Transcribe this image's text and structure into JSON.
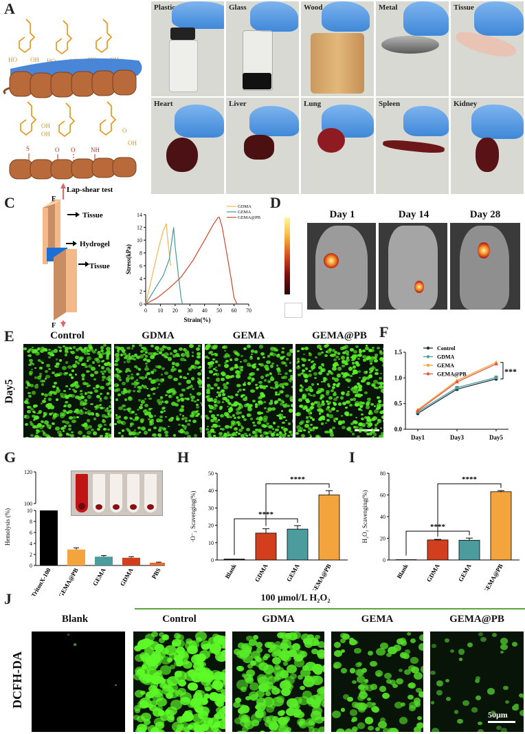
{
  "panels": {
    "A": "A",
    "B": "B",
    "C": "C",
    "D": "D",
    "E": "E",
    "F": "F",
    "G": "G",
    "H": "H",
    "I": "I",
    "J": "J"
  },
  "panelB": {
    "row1": [
      "Plastics",
      "Glass",
      "Wood",
      "Metal",
      "Tissue"
    ],
    "row2": [
      "Heart",
      "Liver",
      "Lung",
      "Spleen",
      "Kidney"
    ]
  },
  "panelC": {
    "title": "Lap-shear test",
    "labels": {
      "tissue_top": "Tissue",
      "hydrogel": "Hydrogel",
      "tissue_bottom": "Tissue",
      "force_top": "F",
      "force_bottom": "F"
    }
  },
  "panelD": {
    "days": [
      "Day 1",
      "Day 14",
      "Day 28"
    ]
  },
  "panelE": {
    "columns": [
      "Control",
      "GDMA",
      "GEMA",
      "GEMA@PB"
    ],
    "row_label": "Day5"
  },
  "panelJ": {
    "condition": "100 μmol/L H₂O₂",
    "row_label": "DCFH-DA",
    "columns": [
      "Blank",
      "Control",
      "GDMA",
      "GEMA",
      "GEMA@PB"
    ],
    "scale_bar": "50μm"
  },
  "colors": {
    "gdma": "#f3b54e",
    "gema": "#3f9a9c",
    "gemapb": "#d2452a",
    "orange": "#f3a43c",
    "teal": "#4c9c9d",
    "red": "#d23f1f",
    "black": "#000000",
    "pbs": "#ea6b2b"
  },
  "chart_data": [
    {
      "id": "C",
      "type": "line",
      "title": "",
      "xlabel": "Strain(%)",
      "ylabel": "Stress(kPa)",
      "xlim": [
        0,
        70
      ],
      "ylim": [
        0,
        14
      ],
      "xticks": [
        0,
        10,
        20,
        30,
        40,
        50,
        60,
        70
      ],
      "yticks": [
        0,
        2,
        4,
        6,
        8,
        10,
        12,
        14
      ],
      "series": [
        {
          "name": "GDMA",
          "x": [
            0,
            3,
            6,
            9,
            12,
            14,
            15,
            17
          ],
          "y": [
            0,
            3,
            6,
            9,
            11.5,
            12.6,
            10,
            6
          ]
        },
        {
          "name": "GEMA",
          "x": [
            0,
            4,
            8,
            12,
            16,
            19,
            20,
            22,
            24,
            25
          ],
          "y": [
            0,
            1.5,
            3,
            4.5,
            7,
            12,
            9,
            5,
            1,
            0
          ]
        },
        {
          "name": "GEMA@PB",
          "x": [
            0,
            8,
            16,
            24,
            32,
            40,
            46,
            49,
            50,
            52,
            55,
            58,
            60,
            62
          ],
          "y": [
            0,
            1,
            2.5,
            4.2,
            6.8,
            10,
            12.5,
            13.5,
            13.6,
            12,
            8,
            4,
            1,
            0
          ]
        }
      ]
    },
    {
      "id": "F",
      "type": "line",
      "title": "",
      "xlabel": "",
      "ylabel": "",
      "categories": [
        "Day1",
        "Day3",
        "Day5"
      ],
      "ylim": [
        0,
        1.5
      ],
      "yticks": [
        0.0,
        0.5,
        1.0,
        1.5
      ],
      "annotation": "***",
      "series": [
        {
          "name": "Control",
          "values": [
            0.31,
            0.78,
            0.98
          ]
        },
        {
          "name": "GDMA",
          "values": [
            0.34,
            0.81,
            1.01
          ]
        },
        {
          "name": "GEMA",
          "values": [
            0.38,
            0.95,
            1.3
          ]
        },
        {
          "name": "GEMA@PB",
          "values": [
            0.36,
            0.92,
            1.27
          ]
        }
      ]
    },
    {
      "id": "G",
      "type": "bar",
      "title": "",
      "ylabel": "Hemolysis (%)",
      "categories": [
        "TritonX-100",
        "GEMA@PB",
        "GEMA",
        "GDMA",
        "PBS"
      ],
      "values": [
        100,
        2.9,
        1.6,
        1.4,
        0.5
      ],
      "errors": [
        0,
        0.3,
        0.2,
        0.2,
        0.1
      ],
      "yticks_low": [
        0,
        2,
        4,
        6,
        8,
        10
      ],
      "yticks_high": [
        100,
        120
      ]
    },
    {
      "id": "H",
      "type": "bar",
      "title": "",
      "ylabel": "·O⁻₂ Scavenging(%)",
      "categories": [
        "Blank",
        "GDMA",
        "GEMA",
        "GEMA@PB"
      ],
      "values": [
        0.5,
        15.5,
        17.8,
        37.5
      ],
      "errors": [
        0,
        2.5,
        2,
        2.5
      ],
      "ylim": [
        0,
        50
      ],
      "yticks": [
        0,
        10,
        20,
        30,
        40,
        50
      ],
      "annotations": [
        "****",
        "****"
      ]
    },
    {
      "id": "I",
      "type": "bar",
      "title": "",
      "ylabel": "H₂O₂ Scavenging(%)",
      "categories": [
        "Blank",
        "GDMA",
        "GEMA",
        "GEMA@PB"
      ],
      "values": [
        0.3,
        18.5,
        18.2,
        63
      ],
      "errors": [
        0,
        0.5,
        2,
        1
      ],
      "ylim": [
        0,
        80
      ],
      "yticks": [
        0,
        20,
        40,
        60,
        80
      ],
      "annotations": [
        "****",
        "****"
      ]
    }
  ]
}
